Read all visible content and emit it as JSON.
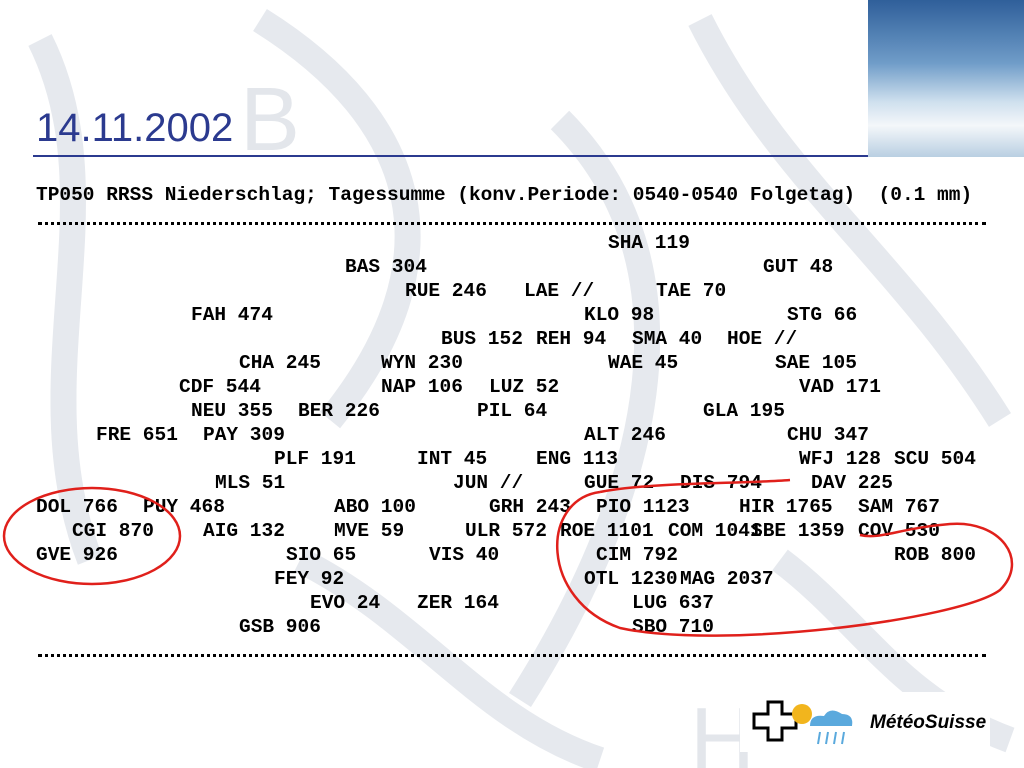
{
  "header": {
    "title": "14.11.2002"
  },
  "report": {
    "heading": "TP050 RRSS Niederschlag; Tagessumme (konv.Periode: 0540-0540 Folgetag)  (0.1 mm)",
    "rows": [
      [
        "SHA 119"
      ],
      [
        "BAS 304",
        "GUT 48"
      ],
      [
        "RUE 246",
        "LAE //",
        "TAE 70"
      ],
      [
        "FAH 474",
        "KLO 98",
        "STG 66"
      ],
      [
        "BUS 152",
        "REH 94",
        "SMA 40",
        "HOE //"
      ],
      [
        "CHA 245",
        "WYN 230",
        "WAE 45",
        "SAE 105"
      ],
      [
        "CDF 544",
        "NAP 106",
        "LUZ 52",
        "VAD 171"
      ],
      [
        "NEU 355",
        "BER 226",
        "PIL 64",
        "GLA 195"
      ],
      [
        "FRE 651",
        "PAY 309",
        "ALT 246",
        "CHU 347"
      ],
      [
        "PLF 191",
        "INT 45",
        "ENG 113",
        "WFJ 128",
        "SCU 504"
      ],
      [
        "MLS 51",
        "JUN //",
        "GUE 72",
        "DIS 794",
        "DAV 225"
      ],
      [
        "DOL 766",
        "PUY 468",
        "ABO 100",
        "GRH 243",
        "PIO 1123",
        "HIR 1765",
        "SAM 767"
      ],
      [
        "CGI 870",
        "AIG 132",
        "MVE 59",
        "ULR 572",
        "ROE 1101",
        "COM 1041",
        "SBE 1359",
        "COV 530"
      ],
      [
        "GVE 926",
        "SIO 65",
        "VIS 40",
        "CIM 792",
        "ROB 800"
      ],
      [
        "FEY 92",
        "OTL 1230",
        "MAG 2037"
      ],
      [
        "EVO 24",
        "ZER 164",
        "LUG 637"
      ],
      [
        "GSB 906",
        "SBO 710"
      ]
    ]
  },
  "logo": {
    "text": "MétéoSuisse"
  }
}
